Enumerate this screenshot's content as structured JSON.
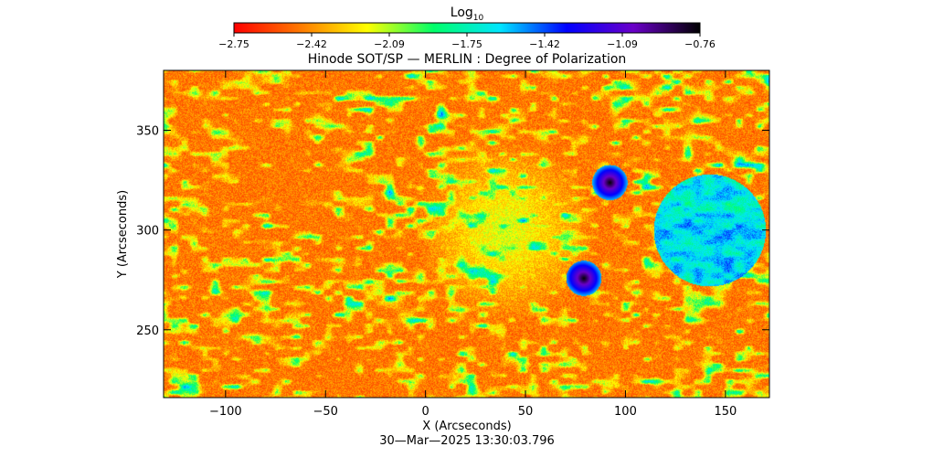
{
  "colorbar": {
    "title_main": "Log",
    "title_sub": "10",
    "tick_labels": [
      "-2.75",
      "-2.42",
      "-2.09",
      "-1.75",
      "-1.42",
      "-1.09",
      "-0.76"
    ],
    "range": [
      -2.75,
      -0.76
    ],
    "colors": [
      "#ff0000",
      "#ff7a00",
      "#ffff00",
      "#00ff6a",
      "#00e5ff",
      "#0000ff",
      "#6a00c8",
      "#000000"
    ]
  },
  "chart_data": {
    "type": "heatmap",
    "title": "Hinode SOT/SP — MERLIN : Degree of Polarization",
    "xlabel": "X (Arcseconds)",
    "ylabel": "Y (Arcseconds)",
    "xlim": [
      -131,
      172
    ],
    "ylim": [
      216,
      380
    ],
    "xticks": [
      -100,
      -50,
      0,
      50,
      100,
      150
    ],
    "yticks": [
      250,
      300,
      350
    ],
    "xtick_labels": [
      "−100",
      "−50",
      "0",
      "50",
      "100",
      "150"
    ],
    "ytick_labels": [
      "250",
      "300",
      "350"
    ],
    "value_scale": "log10",
    "value_range": [
      -2.75,
      -0.76
    ],
    "features": [
      {
        "name": "spot",
        "x": 79,
        "y": 276,
        "radius": 4
      },
      {
        "name": "spot",
        "x": 92,
        "y": 324,
        "radius": 4
      },
      {
        "name": "plage",
        "x": 142,
        "y": 300,
        "radius": 28
      },
      {
        "name": "network",
        "x": 40,
        "y": 300,
        "radius": 45
      }
    ]
  },
  "footer": {
    "timestamp": "30—Mar—2025 13:30:03.796"
  }
}
